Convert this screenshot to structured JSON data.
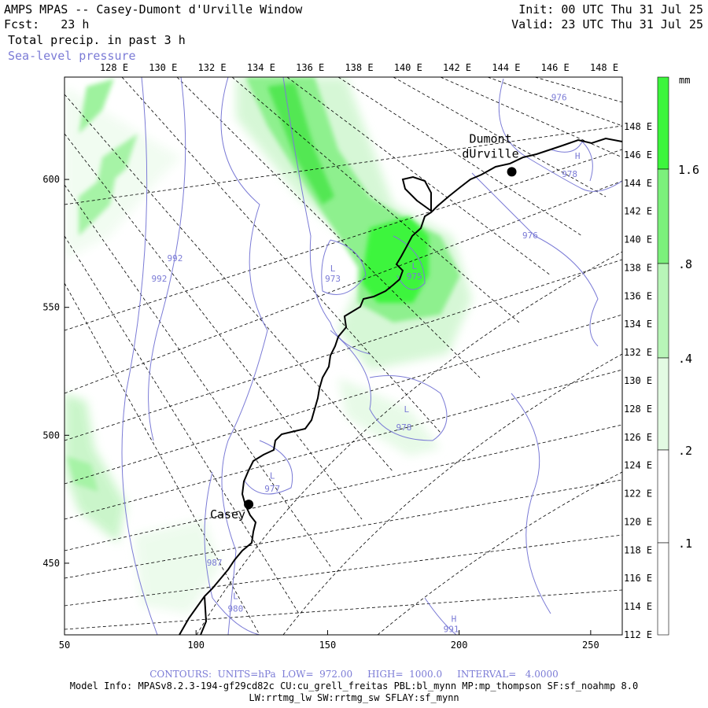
{
  "header": {
    "title": "AMPS MPAS -- Casey-Dumont d'Urville Window",
    "fcst_label": "Fcst:",
    "fcst_value": "23 h",
    "field": "Total precip. in past 3 h",
    "overlay": "Sea-level pressure",
    "init": "Init: 00 UTC Thu 31 Jul 25",
    "valid": "Valid: 23 UTC Thu 31 Jul 25"
  },
  "top_lon_labels": [
    "128 E",
    "130 E",
    "132 E",
    "134 E",
    "136 E",
    "138 E",
    "140 E",
    "142 E",
    "144 E",
    "146 E",
    "148 E"
  ],
  "right_lon_labels": [
    "148 E",
    "146 E",
    "144 E",
    "142 E",
    "140 E",
    "138 E",
    "136 E",
    "134 E",
    "132 E",
    "130 E",
    "128 E",
    "126 E",
    "124 E",
    "122 E",
    "120 E",
    "118 E",
    "116 E",
    "114 E",
    "112 E"
  ],
  "x_axis": {
    "ticks": [
      "50",
      "100",
      "150",
      "200",
      "250"
    ],
    "range": [
      50,
      262
    ]
  },
  "y_axis": {
    "ticks": [
      "600",
      "550",
      "500",
      "450"
    ],
    "range": [
      422,
      640
    ]
  },
  "colorbar": {
    "unit": "mm",
    "labels": [
      "1.6",
      ".8",
      ".4",
      ".2",
      ".1"
    ],
    "colors": [
      "#3df53d",
      "#7cf07c",
      "#b8f5b8",
      "#e3fae3",
      "#ffffff"
    ]
  },
  "stations": [
    {
      "name": "Dumont",
      "name2": "dUrville",
      "x": 220,
      "y": 603
    },
    {
      "name": "Casey",
      "x": 120,
      "y": 473
    }
  ],
  "pressure_labels": [
    {
      "text": "976",
      "x": 238,
      "y": 631
    },
    {
      "text": "H",
      "x": 245,
      "y": 608
    },
    {
      "text": "978",
      "x": 242,
      "y": 601
    },
    {
      "text": "976",
      "x": 227,
      "y": 577
    },
    {
      "text": "992",
      "x": 92,
      "y": 568
    },
    {
      "text": "992",
      "x": 86,
      "y": 560
    },
    {
      "text": "L",
      "x": 152,
      "y": 564
    },
    {
      "text": "973",
      "x": 152,
      "y": 560
    },
    {
      "text": "L",
      "x": 183,
      "y": 565
    },
    {
      "text": "975",
      "x": 183,
      "y": 561
    },
    {
      "text": "L",
      "x": 180,
      "y": 509
    },
    {
      "text": "978",
      "x": 179,
      "y": 502
    },
    {
      "text": "L",
      "x": 129,
      "y": 483
    },
    {
      "text": "977",
      "x": 129,
      "y": 478
    },
    {
      "text": "987",
      "x": 107,
      "y": 449
    },
    {
      "text": "L",
      "x": 115,
      "y": 436
    },
    {
      "text": "980",
      "x": 115,
      "y": 431
    },
    {
      "text": "H",
      "x": 198,
      "y": 427
    },
    {
      "text": "991",
      "x": 197,
      "y": 423
    }
  ],
  "footer": {
    "contours": "CONTOURS:  UNITS=hPa  LOW=  972.00     HIGH=  1000.0     INTERVAL=   4.0000",
    "model1": "Model Info: MPASv8.2.3-194-gf29cd82c CU:cu_grell_freitas PBL:bl_mynn MP:mp_thompson SF:sf_noahmp 8.0",
    "model2": "LW:rrtmg_lw SW:rrtmg_sw SFLAY:sf_mynn"
  },
  "colors": {
    "contour": "#7b7bd6",
    "coast": "#000000",
    "grid": "#000000"
  }
}
